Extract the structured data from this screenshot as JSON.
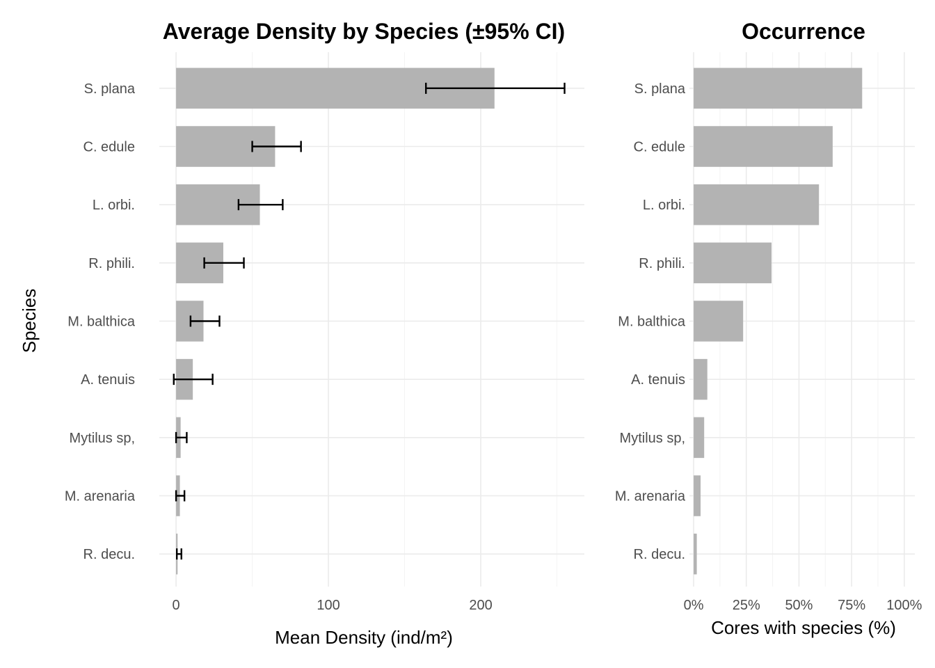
{
  "chart_data": [
    {
      "type": "bar",
      "orientation": "horizontal",
      "title": "Average Density by Species (±95% CI)",
      "xlabel": "Mean Density (ind/m²)",
      "ylabel": "Species",
      "categories": [
        "S. plana",
        "C. edule",
        "L. orbi.",
        "R. phili.",
        "M. balthica",
        "A. tenuis",
        "Mytilus sp,",
        "M. arenaria",
        "R. decu."
      ],
      "values": [
        209,
        65,
        55,
        31,
        18,
        11,
        3,
        2.5,
        1
      ],
      "ci_low": [
        164,
        50,
        41,
        18.5,
        9.5,
        -1.5,
        0,
        0,
        0.5
      ],
      "ci_high": [
        255,
        82,
        70,
        44.5,
        28.5,
        24,
        7,
        5.5,
        3.5
      ],
      "xlim": [
        -11,
        268
      ],
      "xticks": [
        0,
        100,
        200
      ],
      "tick_labels": [
        "0",
        "100",
        "200"
      ],
      "bar_color": "#b3b3b3",
      "grid": true
    },
    {
      "type": "bar",
      "orientation": "horizontal",
      "title": "Occurrence",
      "xlabel": "Cores with species (%)",
      "ylabel": "",
      "categories": [
        "S. plana",
        "C. edule",
        "L. orbi.",
        "R. phili.",
        "M. balthica",
        "A. tenuis",
        "Mytilus sp,",
        "M. arenaria",
        "R. decu."
      ],
      "values": [
        80,
        66,
        59.5,
        37,
        23.5,
        6.5,
        5,
        3.3,
        1.5
      ],
      "xlim": [
        -2,
        105
      ],
      "xticks": [
        0,
        25,
        50,
        75,
        100
      ],
      "tick_labels": [
        "0%",
        "25%",
        "50%",
        "75%",
        "100%"
      ],
      "bar_color": "#b3b3b3",
      "grid": true
    }
  ]
}
